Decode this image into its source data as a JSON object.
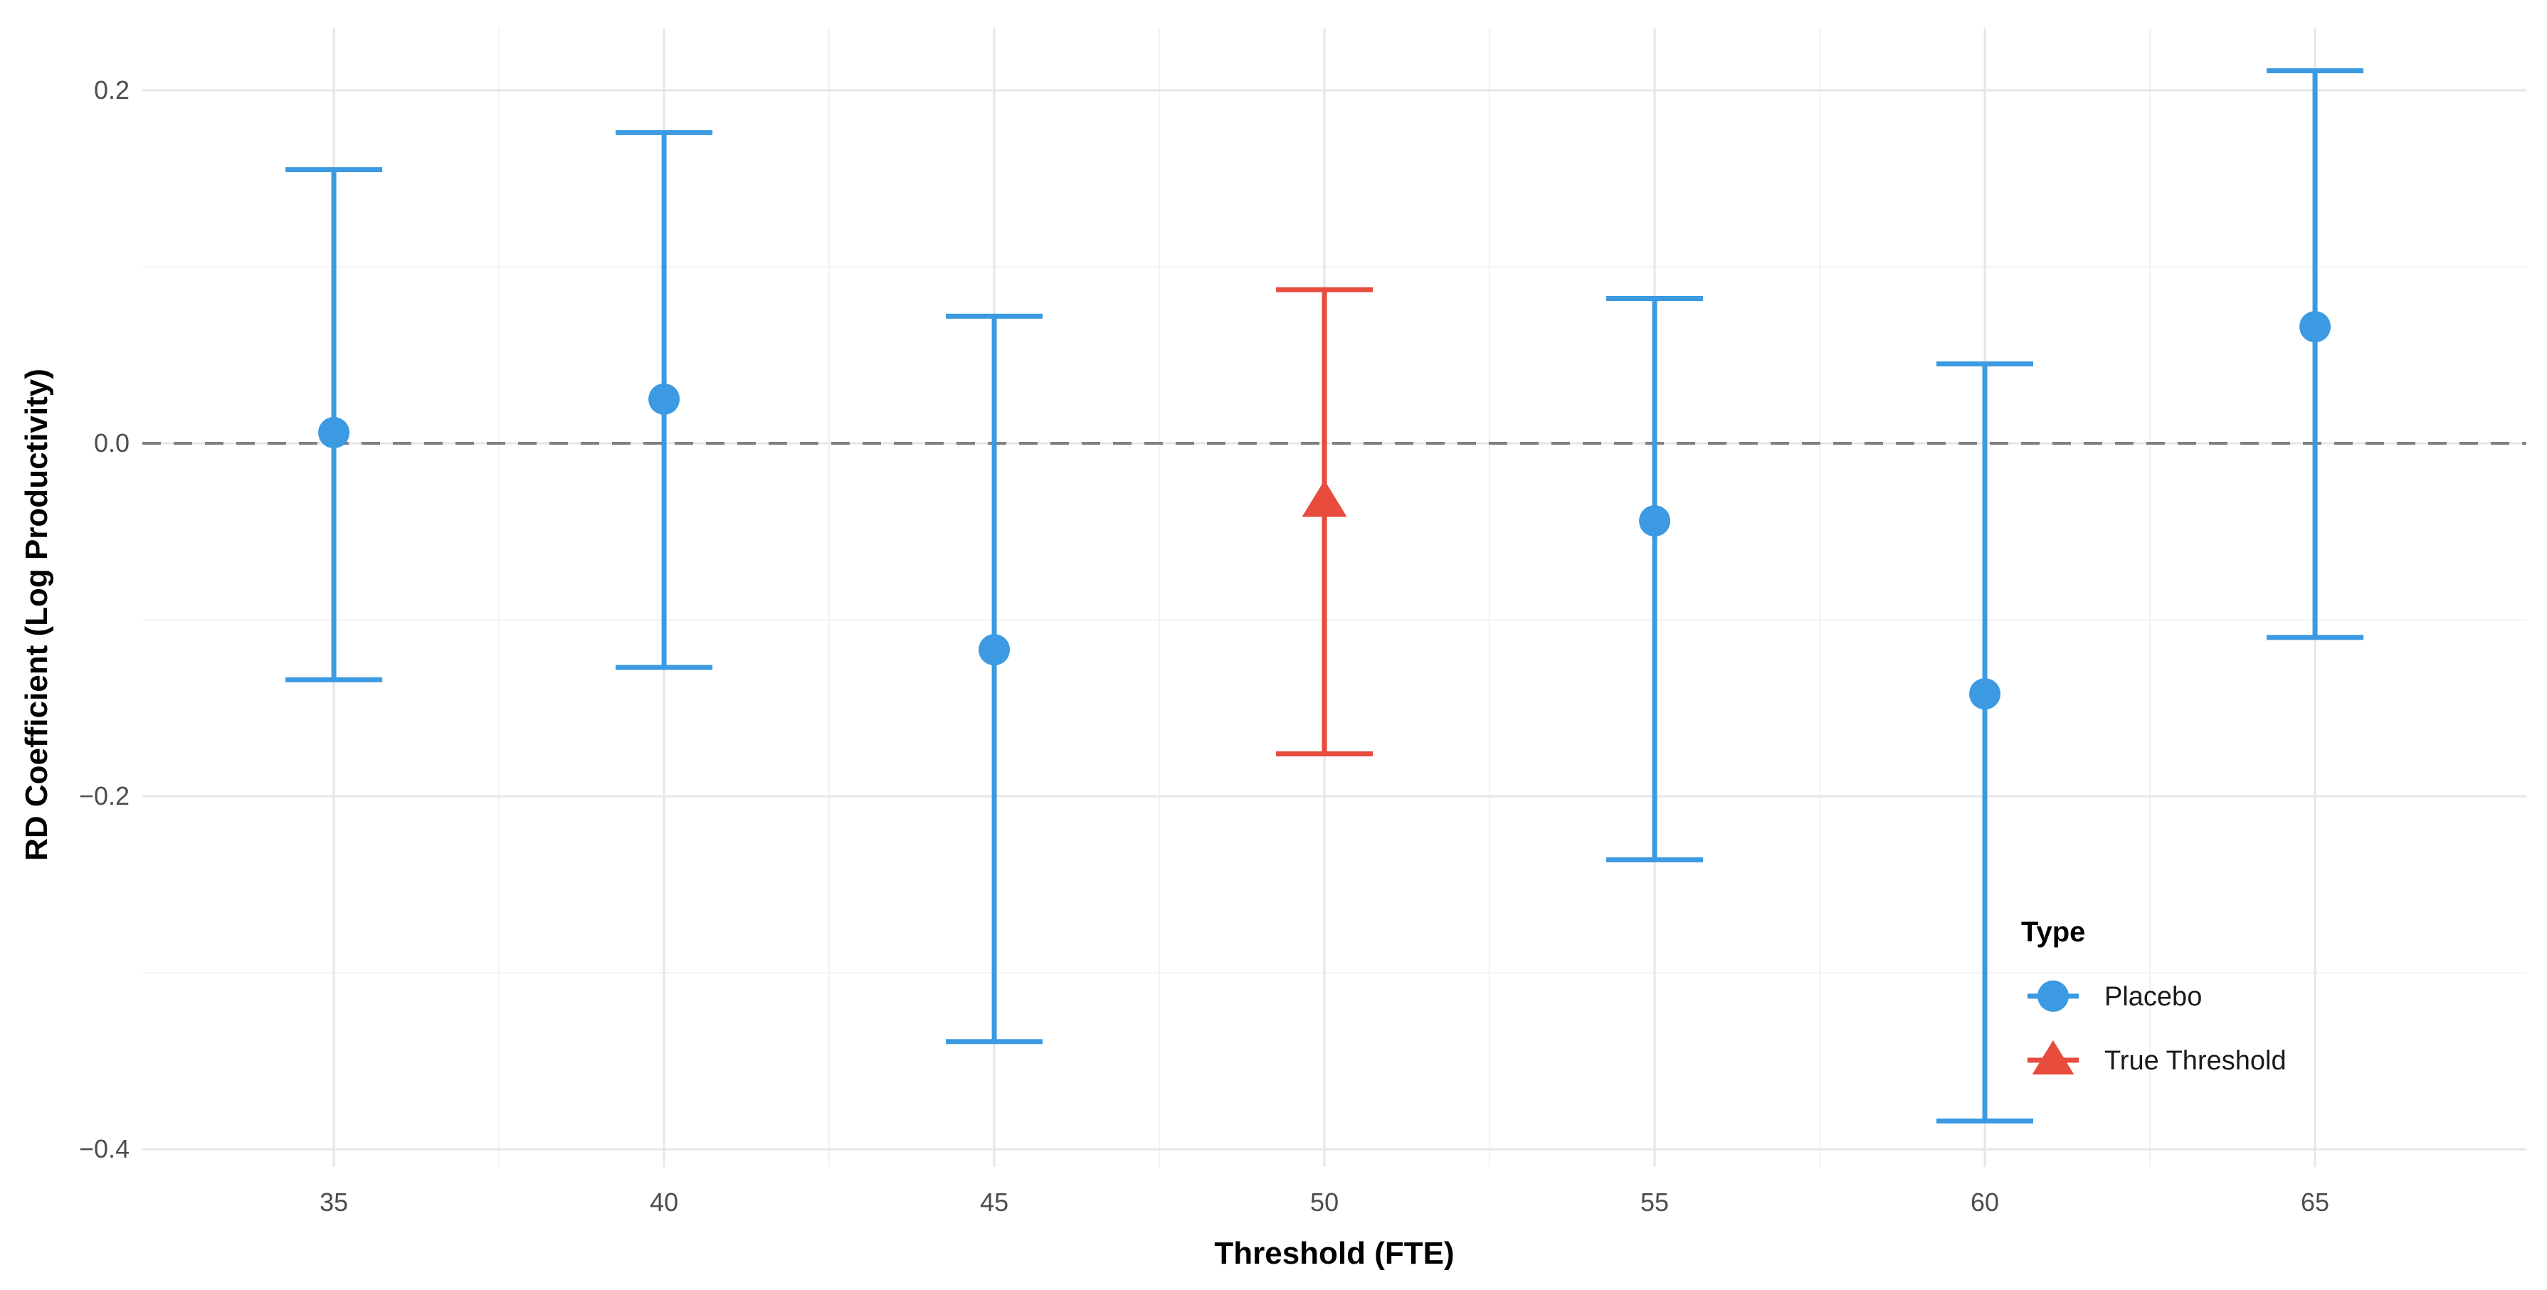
{
  "chart_data": {
    "type": "scatter",
    "xlabel": "Threshold (FTE)",
    "ylabel": "RD Coefficient (Log Productivity)",
    "x_ticks": [
      "35",
      "40",
      "45",
      "50",
      "55",
      "60",
      "65"
    ],
    "y_ticks": [
      "0.2",
      "0.0",
      "−0.2",
      "−0.4"
    ],
    "xlim": [
      32.1,
      68.2
    ],
    "ylim": [
      -0.41,
      0.235
    ],
    "y_tick_values": [
      0.2,
      0.0,
      -0.2,
      -0.4
    ],
    "x_tick_values": [
      35,
      40,
      45,
      50,
      55,
      60,
      65
    ],
    "reference_line": {
      "y": 0.0,
      "style": "dashed"
    },
    "grid": true,
    "legend": {
      "title": "Type",
      "placement": "bottom-right inside plot",
      "entries": [
        {
          "label": "Placebo",
          "marker": "circle",
          "color": "#3b9ae1"
        },
        {
          "label": "True Threshold",
          "marker": "triangle",
          "color": "#e74c3c"
        }
      ]
    },
    "series": [
      {
        "name": "Placebo",
        "color": "#3b9ae1",
        "marker": "circle",
        "points": [
          {
            "x": 35,
            "y": 0.006,
            "lower": -0.134,
            "upper": 0.155
          },
          {
            "x": 40,
            "y": 0.025,
            "lower": -0.127,
            "upper": 0.176
          },
          {
            "x": 45,
            "y": -0.117,
            "lower": -0.339,
            "upper": 0.072
          },
          {
            "x": 55,
            "y": -0.044,
            "lower": -0.236,
            "upper": 0.082
          },
          {
            "x": 60,
            "y": -0.142,
            "lower": -0.384,
            "upper": 0.045
          },
          {
            "x": 65,
            "y": 0.066,
            "lower": -0.11,
            "upper": 0.211
          }
        ]
      },
      {
        "name": "True Threshold",
        "color": "#e74c3c",
        "marker": "triangle",
        "points": [
          {
            "x": 50,
            "y": -0.033,
            "lower": -0.176,
            "upper": 0.087
          }
        ]
      }
    ]
  }
}
